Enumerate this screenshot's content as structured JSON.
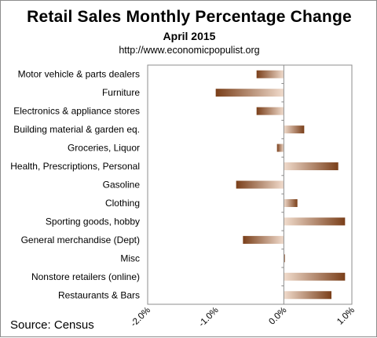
{
  "chart_data": {
    "type": "bar",
    "orientation": "horizontal",
    "title": "Retail Sales Monthly  Percentage Change",
    "subtitle": "April  2015",
    "url": "http://www.economicpopulist.org",
    "source": "Source:  Census",
    "categories": [
      "Motor vehicle & parts dealers",
      "Furniture",
      "Electronics & appliance stores",
      "Building material & garden eq.",
      "Groceries, Liquor",
      "Health, Prescriptions, Personal",
      "Gasoline",
      "Clothing",
      "Sporting goods, hobby",
      "General merchandise (Dept)",
      "Misc",
      "Nonstore retailers (online)",
      "Restaurants & Bars"
    ],
    "values": [
      -0.4,
      -1.0,
      -0.4,
      0.3,
      -0.1,
      0.8,
      -0.7,
      0.2,
      0.9,
      -0.6,
      0.0,
      0.9,
      0.7
    ],
    "xlim": [
      -2.0,
      1.0
    ],
    "xticks": [
      "-2.0%",
      "-1.0%",
      "0.0%",
      "1.0%"
    ],
    "xtick_values": [
      -2.0,
      -1.0,
      0.0,
      1.0
    ],
    "grid": false,
    "legend": "none",
    "colors": {
      "bar_dark": "#7a3f1a",
      "bar_light": "#f1dccd",
      "axis": "#8c8c8c",
      "frame": "#8c8c8c"
    }
  }
}
